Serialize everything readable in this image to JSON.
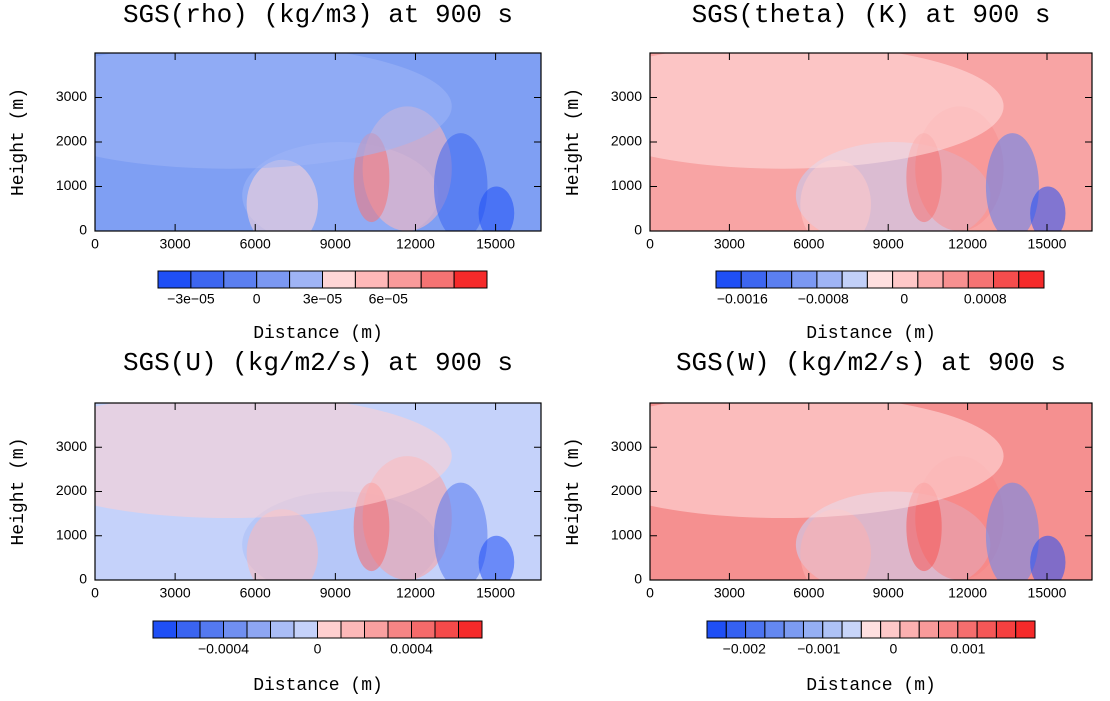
{
  "chart_data": [
    {
      "type": "contour",
      "title": "SGS(rho) (kg/m3) at 900 s",
      "xlabel": "Distance (m)",
      "ylabel": "Height (m)",
      "xlim": [
        0,
        16700
      ],
      "xticks": [
        0,
        3000,
        6000,
        9000,
        12000,
        15000
      ],
      "ylim": [
        0,
        4000
      ],
      "yticks": [
        0,
        1000,
        2000,
        3000
      ],
      "fill_color": "#7f9ff3",
      "colorbar": {
        "lim": [
          -4.5e-05,
          0.000105
        ],
        "colors": [
          "#1f4ff5",
          "#3d66f0",
          "#5b7ff0",
          "#7b98f2",
          "#9fb4f5",
          "#ffd6d6",
          "#ffb8b8",
          "#f99a9a",
          "#f57373",
          "#f52a2a"
        ],
        "ticks": [
          {
            "value": -3e-05,
            "label": "−3e−05"
          },
          0,
          {
            "value": 3e-05,
            "label": "3e−05"
          },
          {
            "value": 6e-05,
            "label": "6e−05"
          }
        ]
      }
    },
    {
      "type": "contour",
      "title": "SGS(theta) (K) at 900 s",
      "xlabel": "Distance (m)",
      "ylabel": "Height (m)",
      "xlim": [
        0,
        16700
      ],
      "xticks": [
        0,
        3000,
        6000,
        9000,
        12000,
        15000
      ],
      "ylim": [
        0,
        4000
      ],
      "yticks": [
        0,
        1000,
        2000,
        3000
      ],
      "fill_color": "#f8a4a4",
      "colorbar": {
        "lim": [
          -0.00186,
          0.00138
        ],
        "colors": [
          "#1f4ff5",
          "#3d66f0",
          "#5b7ff0",
          "#7b98f2",
          "#9fb4f5",
          "#c2d0f8",
          "#ffe0e0",
          "#ffc8c8",
          "#fbacac",
          "#f79090",
          "#f57373",
          "#f54d4d",
          "#f52a2a"
        ],
        "ticks": [
          {
            "value": -0.0016,
            "label": "−0.0016"
          },
          {
            "value": -0.0008,
            "label": "−0.0008"
          },
          0,
          0.0008
        ]
      }
    },
    {
      "type": "contour",
      "title": "SGS(U) (kg/m2/s) at 900 s",
      "xlabel": "Distance (m)",
      "ylabel": "Height (m)",
      "xlim": [
        0,
        16700
      ],
      "xticks": [
        0,
        3000,
        6000,
        9000,
        12000,
        15000
      ],
      "ylim": [
        0,
        4000
      ],
      "yticks": [
        0,
        1000,
        2000,
        3000
      ],
      "fill_color": "#c5d2fa",
      "colorbar": {
        "lim": [
          -0.0007,
          0.0007
        ],
        "colors": [
          "#1f4ff5",
          "#3a64f1",
          "#5479f0",
          "#708ff1",
          "#8ea6f3",
          "#aabdf6",
          "#c5d2fa",
          "#ffd0d0",
          "#fcb8b8",
          "#f9a0a0",
          "#f68585",
          "#f56a6a",
          "#f54a4a",
          "#f52a2a"
        ],
        "ticks": [
          {
            "value": -0.0004,
            "label": "−0.0004"
          },
          0,
          0.0004
        ]
      }
    },
    {
      "type": "contour",
      "title": "SGS(W) (kg/m2/s) at 900 s",
      "xlabel": "Distance (m)",
      "ylabel": "Height (m)",
      "xlim": [
        0,
        16700
      ],
      "xticks": [
        0,
        3000,
        6000,
        9000,
        12000,
        15000
      ],
      "ylim": [
        0,
        4000
      ],
      "yticks": [
        0,
        1000,
        2000,
        3000
      ],
      "fill_color": "#f59090",
      "colorbar": {
        "lim": [
          -0.0025,
          0.0019
        ],
        "colors": [
          "#1f4ff5",
          "#3561f2",
          "#4c74f1",
          "#6488f1",
          "#7c9bf2",
          "#95aff4",
          "#aec2f6",
          "#c8d5f9",
          "#ffe0e0",
          "#fdc8c8",
          "#fbb0b0",
          "#f99a9a",
          "#f78484",
          "#f56e6e",
          "#f55757",
          "#f54040",
          "#f52a2a"
        ],
        "ticks": [
          {
            "value": -0.002,
            "label": "−0.002"
          },
          {
            "value": -0.001,
            "label": "−0.001"
          },
          0,
          0.001
        ]
      }
    }
  ]
}
